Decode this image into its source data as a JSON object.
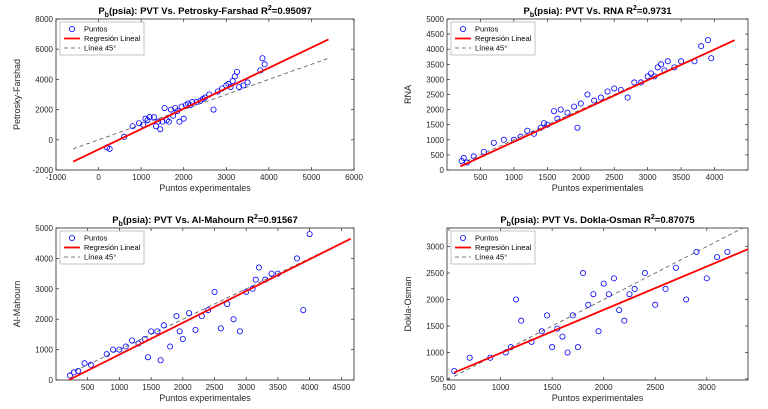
{
  "legend_labels": [
    "Puntos",
    "Regresión Lineal",
    "Línea 45°"
  ],
  "colors": {
    "points": "#0000ff",
    "regression": "#ff0000",
    "line45": "#555555",
    "axis": "#262626"
  },
  "chart_data": [
    {
      "type": "scatter",
      "title_parts": [
        "P",
        "b",
        "(psia): PVT Vs. Petrosky-Farshad R",
        "2",
        "=0.95097"
      ],
      "xlabel": "Puntos experimentales",
      "ylabel": "Petrosky-Farshad",
      "xlim": [
        -1000,
        6000
      ],
      "ylim": [
        -2000,
        8000
      ],
      "xticks": [
        -1000,
        0,
        1000,
        2000,
        3000,
        4000,
        5000,
        6000
      ],
      "yticks": [
        -2000,
        0,
        2000,
        4000,
        6000,
        8000
      ],
      "legend_position": "top-left",
      "series": [
        {
          "name": "Puntos",
          "kind": "points",
          "x": [
            200,
            260,
            600,
            800,
            950,
            1050,
            1100,
            1150,
            1200,
            1300,
            1350,
            1400,
            1450,
            1500,
            1550,
            1600,
            1650,
            1700,
            1750,
            1800,
            1850,
            1900,
            1950,
            2000,
            2050,
            2100,
            2150,
            2200,
            2300,
            2400,
            2450,
            2500,
            2600,
            2700,
            2800,
            2900,
            3000,
            3050,
            3100,
            3150,
            3200,
            3250,
            3300,
            3400,
            3500,
            3800,
            3850,
            3900
          ],
          "y": [
            -500,
            -600,
            200,
            900,
            1100,
            1000,
            1400,
            1300,
            1500,
            1500,
            900,
            1200,
            700,
            1200,
            2100,
            1300,
            1200,
            2000,
            1600,
            2100,
            1900,
            1200,
            2200,
            1400,
            2300,
            2400,
            2300,
            2500,
            2500,
            2600,
            2700,
            2800,
            3000,
            2000,
            3200,
            3400,
            3600,
            3700,
            3500,
            3900,
            4200,
            4500,
            3500,
            3600,
            3800,
            4600,
            5400,
            5000
          ]
        },
        {
          "name": "Regresión Lineal",
          "kind": "line",
          "x": [
            -600,
            5400
          ],
          "y": [
            -1450,
            6650
          ]
        },
        {
          "name": "Línea 45°",
          "kind": "dashed",
          "x": [
            -600,
            5400
          ],
          "y": [
            -600,
            5400
          ]
        }
      ]
    },
    {
      "type": "scatter",
      "title_parts": [
        "P",
        "b",
        "(psia): PVT Vs. RNA R",
        "2",
        "=0.9731"
      ],
      "xlabel": "Puntos experimentales",
      "ylabel": "RNA",
      "xlim": [
        0,
        4500
      ],
      "ylim": [
        0,
        5000
      ],
      "xticks": [
        500,
        1000,
        1500,
        2000,
        2500,
        3000,
        3500,
        4000
      ],
      "yticks": [
        0,
        500,
        1000,
        1500,
        2000,
        2500,
        3000,
        3500,
        4000,
        4500,
        5000
      ],
      "legend_position": "top-left",
      "series": [
        {
          "name": "Puntos",
          "kind": "points",
          "x": [
            220,
            250,
            300,
            400,
            550,
            700,
            850,
            1000,
            1100,
            1200,
            1300,
            1400,
            1450,
            1500,
            1600,
            1650,
            1700,
            1800,
            1900,
            1950,
            2000,
            2100,
            2200,
            2300,
            2400,
            2500,
            2600,
            2700,
            2800,
            2900,
            3000,
            3050,
            3100,
            3150,
            3200,
            3250,
            3300,
            3400,
            3500,
            3700,
            3800,
            3900,
            3950
          ],
          "y": [
            300,
            400,
            250,
            450,
            600,
            900,
            1000,
            1000,
            1100,
            1300,
            1200,
            1400,
            1550,
            1500,
            1950,
            1700,
            2000,
            1900,
            2100,
            1400,
            2200,
            2500,
            2300,
            2400,
            2600,
            2700,
            2650,
            2400,
            2900,
            2900,
            3100,
            3200,
            3100,
            3400,
            3500,
            3300,
            3600,
            3400,
            3600,
            3600,
            4100,
            4300,
            3700
          ]
        },
        {
          "name": "Regresión Lineal",
          "kind": "line",
          "x": [
            200,
            4300
          ],
          "y": [
            120,
            4300
          ]
        },
        {
          "name": "Línea 45°",
          "kind": "dashed",
          "x": [
            200,
            4300
          ],
          "y": [
            200,
            4300
          ]
        }
      ]
    },
    {
      "type": "scatter",
      "title_parts": [
        "P",
        "b",
        "(psia): PVT Vs. Al-Mahourn R",
        "2",
        "=0.91567"
      ],
      "xlabel": "Puntos experimentales",
      "ylabel": "Al-Mahourn",
      "xlim": [
        0,
        4700
      ],
      "ylim": [
        0,
        5000
      ],
      "xticks": [
        500,
        1000,
        1500,
        2000,
        2500,
        3000,
        3500,
        4000,
        4500
      ],
      "yticks": [
        0,
        1000,
        2000,
        3000,
        4000,
        5000
      ],
      "legend_position": "top-left",
      "series": [
        {
          "name": "Puntos",
          "kind": "points",
          "x": [
            220,
            280,
            350,
            450,
            550,
            800,
            900,
            1000,
            1100,
            1200,
            1300,
            1400,
            1450,
            1500,
            1600,
            1650,
            1700,
            1800,
            1900,
            1950,
            2000,
            2100,
            2200,
            2300,
            2400,
            2500,
            2600,
            2700,
            2800,
            2900,
            3000,
            3100,
            3150,
            3200,
            3300,
            3400,
            3500,
            3800,
            3900,
            4000
          ],
          "y": [
            150,
            250,
            300,
            550,
            500,
            850,
            1000,
            1000,
            1100,
            1300,
            1200,
            1350,
            750,
            1600,
            1600,
            650,
            1800,
            1100,
            2100,
            1600,
            1350,
            2200,
            1650,
            2100,
            2300,
            2900,
            1700,
            2500,
            2000,
            1600,
            2900,
            3000,
            3300,
            3700,
            3300,
            3500,
            3500,
            4000,
            2300,
            4800
          ]
        },
        {
          "name": "Regresión Lineal",
          "kind": "line",
          "x": [
            200,
            4650
          ],
          "y": [
            0,
            4650
          ]
        },
        {
          "name": "Línea 45°",
          "kind": "dashed",
          "x": [
            200,
            4650
          ],
          "y": [
            200,
            4650
          ]
        }
      ]
    },
    {
      "type": "scatter",
      "title_parts": [
        "P",
        "b",
        "(psia): PVT Vs. Dokla-Osman R",
        "2",
        "=0.87075"
      ],
      "xlabel": "Puntos experimentales",
      "ylabel": "Dokla-Osman",
      "xlim": [
        480,
        3400
      ],
      "ylim": [
        480,
        3350
      ],
      "xticks": [
        500,
        1000,
        1500,
        2000,
        2500,
        3000
      ],
      "yticks": [
        500,
        1000,
        1500,
        2000,
        2500,
        3000
      ],
      "legend_position": "top-left",
      "series": [
        {
          "name": "Puntos",
          "kind": "points",
          "x": [
            550,
            700,
            900,
            1050,
            1100,
            1150,
            1200,
            1300,
            1400,
            1450,
            1500,
            1550,
            1600,
            1650,
            1700,
            1750,
            1800,
            1850,
            1900,
            1950,
            2000,
            2050,
            2100,
            2150,
            2200,
            2250,
            2300,
            2400,
            2500,
            2600,
            2700,
            2800,
            2900,
            3000,
            3100,
            3200
          ],
          "y": [
            650,
            900,
            900,
            1000,
            1100,
            2000,
            1600,
            1200,
            1400,
            1700,
            1100,
            1450,
            1300,
            1000,
            1700,
            1100,
            2500,
            1900,
            2100,
            1400,
            2300,
            2100,
            2400,
            1800,
            1600,
            2100,
            2200,
            2500,
            1900,
            2200,
            2600,
            2000,
            2900,
            2400,
            2800,
            2900
          ]
        },
        {
          "name": "Regresión Lineal",
          "kind": "line",
          "x": [
            550,
            3400
          ],
          "y": [
            620,
            2950
          ]
        },
        {
          "name": "Línea 45°",
          "kind": "dashed",
          "x": [
            550,
            3400
          ],
          "y": [
            550,
            3400
          ]
        }
      ]
    }
  ]
}
